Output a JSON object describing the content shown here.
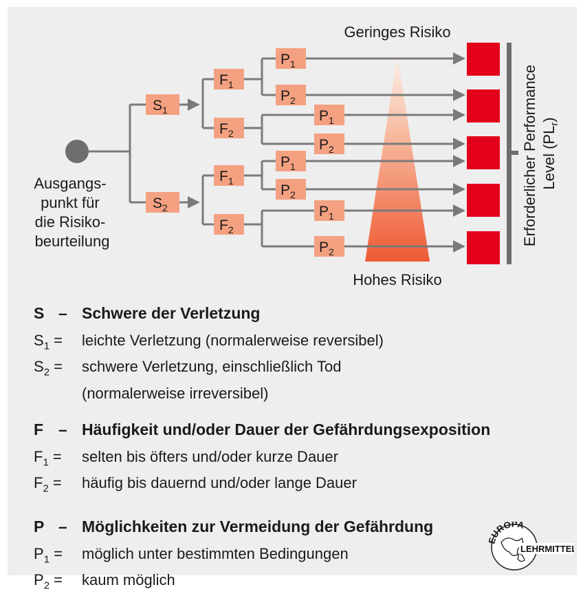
{
  "top_label": "Geringes Risiko",
  "bottom_label": "Hohes Risiko",
  "start_label": [
    "Ausgangs-",
    "punkt für",
    "die Risiko-",
    "beurteilung"
  ],
  "axis_label": [
    "Erforderlicher Performance",
    "Level (PL"
  ],
  "axis_label_sub": "r",
  "axis_label_end": ")",
  "nodes": {
    "s1": {
      "letter": "S",
      "sub": "1"
    },
    "s2": {
      "letter": "S",
      "sub": "2"
    },
    "f1a": {
      "letter": "F",
      "sub": "1"
    },
    "f2a": {
      "letter": "F",
      "sub": "2"
    },
    "f1b": {
      "letter": "F",
      "sub": "1"
    },
    "f2b": {
      "letter": "F",
      "sub": "2"
    },
    "p1a": {
      "letter": "P",
      "sub": "1"
    },
    "p2a": {
      "letter": "P",
      "sub": "2"
    },
    "p1b": {
      "letter": "P",
      "sub": "1"
    },
    "p2b": {
      "letter": "P",
      "sub": "2"
    },
    "p1c": {
      "letter": "P",
      "sub": "1"
    },
    "p2c": {
      "letter": "P",
      "sub": "2"
    },
    "p1d": {
      "letter": "P",
      "sub": "1"
    },
    "p2d": {
      "letter": "P",
      "sub": "2"
    }
  },
  "legend": {
    "s": {
      "key": "S",
      "dash": "–",
      "title": "Schwere der Verletzung",
      "rows": [
        {
          "letter": "S",
          "sub": "1",
          "eq": "=",
          "text": "leichte Verletzung (normalerweise reversibel)"
        },
        {
          "letter": "S",
          "sub": "2",
          "eq": "=",
          "text": "schwere Verletzung, einschließlich Tod"
        },
        {
          "letter": "",
          "sub": "",
          "eq": "",
          "text": "(normalerweise irreversibel)"
        }
      ]
    },
    "f": {
      "key": "F",
      "dash": "–",
      "title": "Häufigkeit und/oder Dauer der Gefährdungsexposition",
      "rows": [
        {
          "letter": "F",
          "sub": "1",
          "eq": "=",
          "text": "selten bis öfters und/oder kurze Dauer"
        },
        {
          "letter": "F",
          "sub": "2",
          "eq": "=",
          "text": "häufig bis dauernd und/oder lange Dauer"
        }
      ]
    },
    "p": {
      "key": "P",
      "dash": "–",
      "title": "Möglichkeiten zur Vermeidung der Gefährdung",
      "rows": [
        {
          "letter": "P",
          "sub": "1",
          "eq": "=",
          "text": "möglich unter bestimmten Bedingungen"
        },
        {
          "letter": "P",
          "sub": "2",
          "eq": "=",
          "text": "kaum möglich"
        }
      ]
    }
  },
  "logo": {
    "top": "EUROPA",
    "bottom": "LEHRMITTEL"
  },
  "colors": {
    "node": "#f4a181",
    "pl_box": "#e3001b",
    "line": "#7a7a7a",
    "triangle_top": "#fbe3d6",
    "triangle_bottom": "#f0603a",
    "panel": "#eeeeee"
  }
}
